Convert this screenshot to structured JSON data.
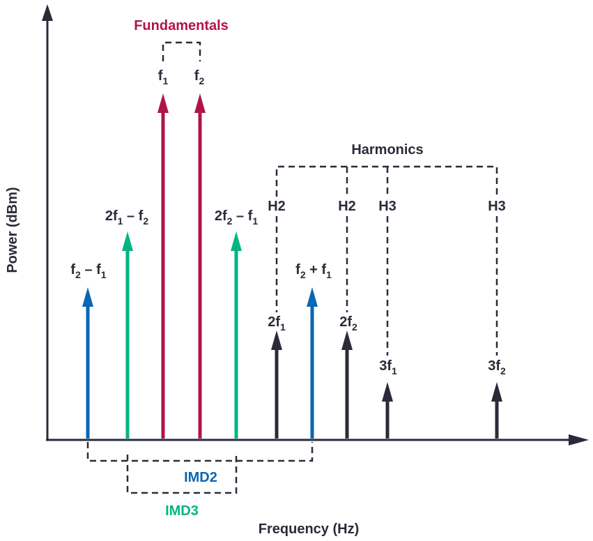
{
  "axes": {
    "ylabel": "Power (dBm)",
    "xlabel": "Frequency (Hz)"
  },
  "groups": {
    "fundamentals": {
      "label": "Fundamentals",
      "color": "#b0144a"
    },
    "harmonics": {
      "label": "Harmonics",
      "color": "#2b2a3a"
    },
    "imd2": {
      "label": "IMD2",
      "color": "#0a67b3"
    },
    "imd3": {
      "label": "IMD3",
      "color": "#06b384"
    }
  },
  "tones": [
    {
      "id": "f2-f1",
      "type": "imd2",
      "label": "f",
      "sub": "2",
      "label2": " – f",
      "sub2": "1"
    },
    {
      "id": "2f1-f2",
      "type": "imd3",
      "label": "2f",
      "sub": "1",
      "label2": " – f",
      "sub2": "2"
    },
    {
      "id": "f1",
      "type": "fundamental",
      "label": "f",
      "sub": "1"
    },
    {
      "id": "f2",
      "type": "fundamental",
      "label": "f",
      "sub": "2"
    },
    {
      "id": "2f2-f1",
      "type": "imd3",
      "label": "2f",
      "sub": "2",
      "label2": " – f",
      "sub2": "1"
    },
    {
      "id": "2f1",
      "type": "harmonic",
      "label": "2f",
      "sub": "1",
      "order_label": "H2"
    },
    {
      "id": "f2+f1",
      "type": "imd2",
      "label": "f",
      "sub": "2",
      "label2": " + f",
      "sub2": "1"
    },
    {
      "id": "2f2",
      "type": "harmonic",
      "label": "2f",
      "sub": "2",
      "order_label": "H2"
    },
    {
      "id": "3f1",
      "type": "harmonic",
      "label": "3f",
      "sub": "1",
      "order_label": "H3"
    },
    {
      "id": "3f2",
      "type": "harmonic",
      "label": "3f",
      "sub": "2",
      "order_label": "H3"
    }
  ]
}
